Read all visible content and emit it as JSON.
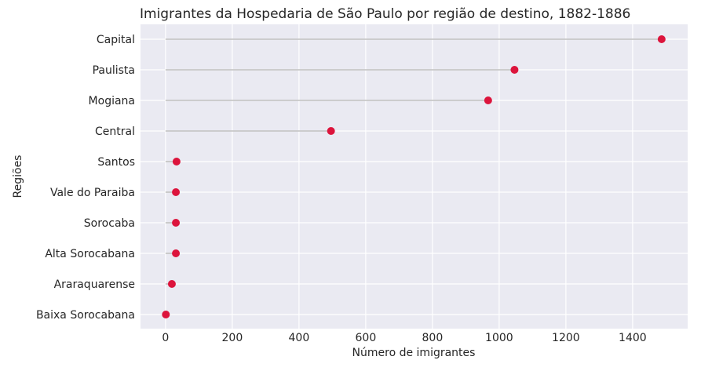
{
  "chart_data": {
    "type": "lollipop",
    "title": "Imigrantes da Hospedaria de São Paulo por região de destino, 1882-1886",
    "xlabel": "Número de imigrantes",
    "ylabel": "Regiões",
    "xlim": [
      -75,
      1565
    ],
    "xticks": [
      0,
      200,
      400,
      600,
      800,
      1000,
      1200,
      1400
    ],
    "xtick_labels": [
      "0",
      "200",
      "400",
      "600",
      "800",
      "1000",
      "1200",
      "1400"
    ],
    "categories": [
      "Capital",
      "Paulista",
      "Mogiana",
      "Central",
      "Santos",
      "Vale do Paraiba",
      "Sorocaba",
      "Alta Sorocabana",
      "Araraquarense",
      "Baixa Sorocabana"
    ],
    "values": [
      1487,
      1046,
      967,
      496,
      33,
      31,
      31,
      31,
      19,
      1
    ],
    "grid": true,
    "background": "#eaeaf2",
    "marker_color": "#dc143c",
    "stem_color": "#c0c0c0"
  }
}
